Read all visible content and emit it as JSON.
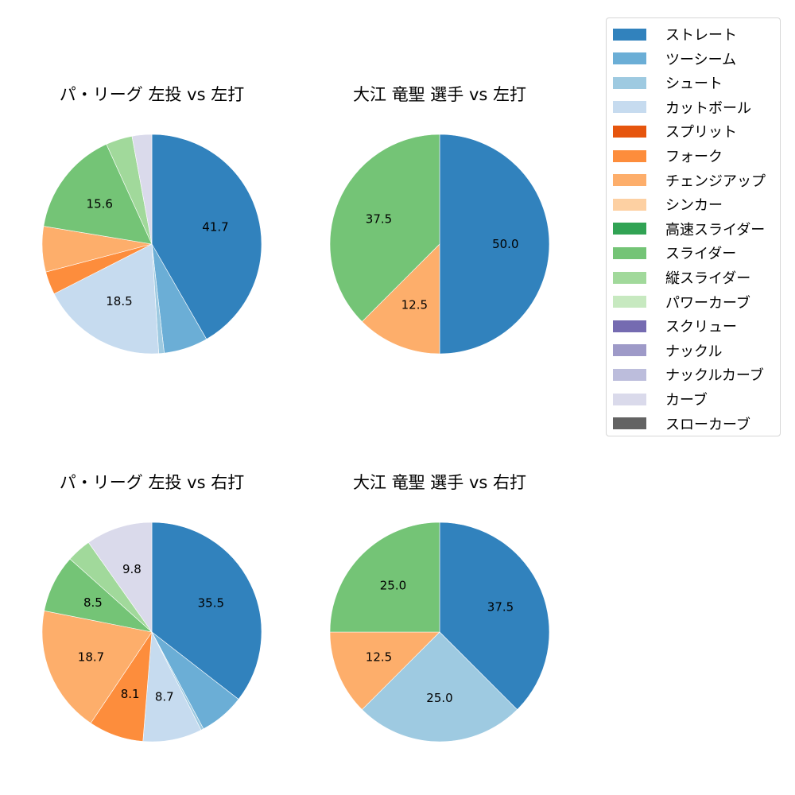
{
  "legend": {
    "items": [
      {
        "label": "ストレート",
        "color": "#3182bd"
      },
      {
        "label": "ツーシーム",
        "color": "#6baed6"
      },
      {
        "label": "シュート",
        "color": "#9ecae1"
      },
      {
        "label": "カットボール",
        "color": "#c6dbef"
      },
      {
        "label": "スプリット",
        "color": "#e6550d"
      },
      {
        "label": "フォーク",
        "color": "#fd8d3c"
      },
      {
        "label": "チェンジアップ",
        "color": "#fdae6b"
      },
      {
        "label": "シンカー",
        "color": "#fdd0a2"
      },
      {
        "label": "高速スライダー",
        "color": "#31a354"
      },
      {
        "label": "スライダー",
        "color": "#74c476"
      },
      {
        "label": "縦スライダー",
        "color": "#a1d99b"
      },
      {
        "label": "パワーカーブ",
        "color": "#c7e9c0"
      },
      {
        "label": "スクリュー",
        "color": "#756bb1"
      },
      {
        "label": "ナックル",
        "color": "#9e9ac8"
      },
      {
        "label": "ナックルカーブ",
        "color": "#bcbddc"
      },
      {
        "label": "カーブ",
        "color": "#dadaeb"
      },
      {
        "label": "スローカーブ",
        "color": "#636363"
      }
    ]
  },
  "chart_data": [
    {
      "type": "pie",
      "title": "パ・リーグ 左投 vs 左打",
      "start_angle": 90,
      "direction": "clockwise",
      "slices": [
        {
          "label": "ストレート",
          "value": 41.7,
          "show_label": true
        },
        {
          "label": "ツーシーム",
          "value": 6.5,
          "show_label": false
        },
        {
          "label": "シュート",
          "value": 0.8,
          "show_label": false
        },
        {
          "label": "カットボール",
          "value": 18.5,
          "show_label": true
        },
        {
          "label": "フォーク",
          "value": 3.4,
          "show_label": false
        },
        {
          "label": "チェンジアップ",
          "value": 6.7,
          "show_label": false
        },
        {
          "label": "スライダー",
          "value": 15.6,
          "show_label": true
        },
        {
          "label": "縦スライダー",
          "value": 3.9,
          "show_label": false
        },
        {
          "label": "カーブ",
          "value": 2.9,
          "show_label": false
        }
      ]
    },
    {
      "type": "pie",
      "title": "大江 竜聖 選手 vs 左打",
      "start_angle": 90,
      "direction": "clockwise",
      "slices": [
        {
          "label": "ストレート",
          "value": 50.0,
          "show_label": true
        },
        {
          "label": "チェンジアップ",
          "value": 12.5,
          "show_label": true
        },
        {
          "label": "スライダー",
          "value": 37.5,
          "show_label": true
        }
      ]
    },
    {
      "type": "pie",
      "title": "パ・リーグ 左投 vs 右打",
      "start_angle": 90,
      "direction": "clockwise",
      "slices": [
        {
          "label": "ストレート",
          "value": 35.5,
          "show_label": true
        },
        {
          "label": "ツーシーム",
          "value": 6.7,
          "show_label": false
        },
        {
          "label": "シュート",
          "value": 0.4,
          "show_label": false
        },
        {
          "label": "カットボール",
          "value": 8.7,
          "show_label": true
        },
        {
          "label": "フォーク",
          "value": 8.1,
          "show_label": true
        },
        {
          "label": "チェンジアップ",
          "value": 18.7,
          "show_label": true
        },
        {
          "label": "スライダー",
          "value": 8.5,
          "show_label": true
        },
        {
          "label": "縦スライダー",
          "value": 3.6,
          "show_label": false
        },
        {
          "label": "カーブ",
          "value": 9.8,
          "show_label": true
        }
      ]
    },
    {
      "type": "pie",
      "title": "大江 竜聖 選手 vs 右打",
      "start_angle": 90,
      "direction": "clockwise",
      "slices": [
        {
          "label": "ストレート",
          "value": 37.5,
          "show_label": true
        },
        {
          "label": "シュート",
          "value": 25.0,
          "show_label": true
        },
        {
          "label": "チェンジアップ",
          "value": 12.5,
          "show_label": true
        },
        {
          "label": "スライダー",
          "value": 25.0,
          "show_label": true
        }
      ]
    }
  ]
}
